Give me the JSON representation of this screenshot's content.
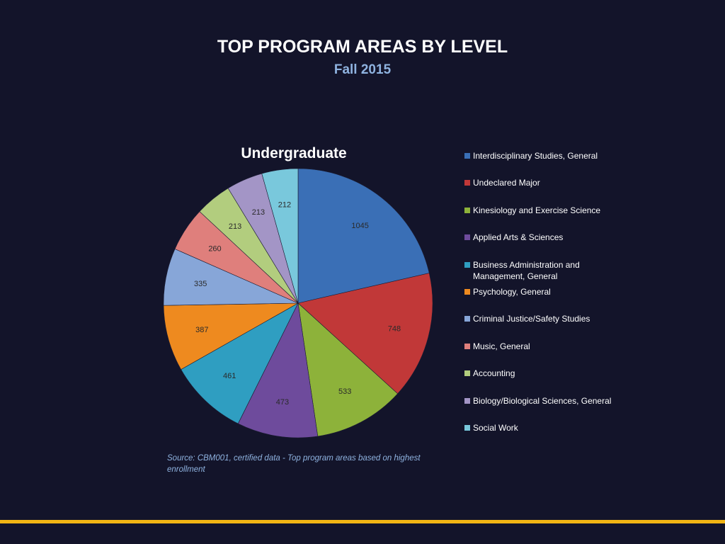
{
  "slide": {
    "title": "TOP PROGRAM AREAS BY LEVEL",
    "subtitle": "Fall 2015",
    "source_note": "Source: CBM001, certified data - Top program areas based on highest enrollment"
  },
  "colors": {
    "background": "#13142a",
    "title": "#ffffff",
    "subtitle": "#8fb3e0",
    "accent_bar": "#f2b514"
  },
  "chart_data": {
    "type": "pie",
    "title": "Undergraduate",
    "categories": [
      "Interdisciplinary Studies, General",
      "Undeclared Major",
      "Kinesiology and Exercise Science",
      "Applied Arts & Sciences",
      "Business Administration and Management, General",
      "Psychology, General",
      "Criminal Justice/Safety Studies",
      "Music, General",
      "Accounting",
      "Biology/Biological Sciences, General",
      "Social Work"
    ],
    "values": [
      1045,
      748,
      533,
      473,
      461,
      387,
      335,
      260,
      213,
      213,
      212
    ],
    "colors": [
      "#3a6fb6",
      "#c13838",
      "#8db23a",
      "#6e4b9c",
      "#2f9ec1",
      "#ee8a1f",
      "#87a6d8",
      "#df7f7c",
      "#b2cd7e",
      "#a395c6",
      "#79c8dc"
    ],
    "legend_position": "right",
    "data_labels": true
  }
}
